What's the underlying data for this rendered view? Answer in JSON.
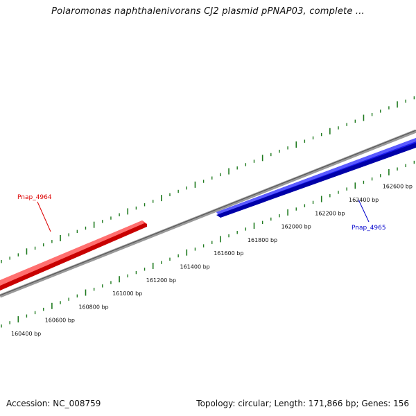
{
  "title": "Polaromonas naphthalenivorans CJ2 plasmid pPNAP03, complete ...",
  "footer": {
    "accession": "Accession: NC_008759",
    "topology": "Topology: circular; Length: 171,866 bp; Genes: 156"
  },
  "colors": {
    "forward_gene": "#ff2222",
    "reverse_gene": "#1414f0",
    "backbone": "#8c8c8c",
    "ticks": "#1e7a1e"
  },
  "genes": [
    {
      "name": "Pnap_4964",
      "strand": "forward",
      "color": "#dd0000"
    },
    {
      "name": "Pnap_4965",
      "strand": "reverse",
      "color": "#0000cc"
    }
  ],
  "scale_labels": [
    "160400 bp",
    "160600 bp",
    "160800 bp",
    "161000 bp",
    "161200 bp",
    "161400 bp",
    "161600 bp",
    "161800 bp",
    "162000 bp",
    "162200 bp",
    "162400 bp",
    "162600 bp"
  ]
}
